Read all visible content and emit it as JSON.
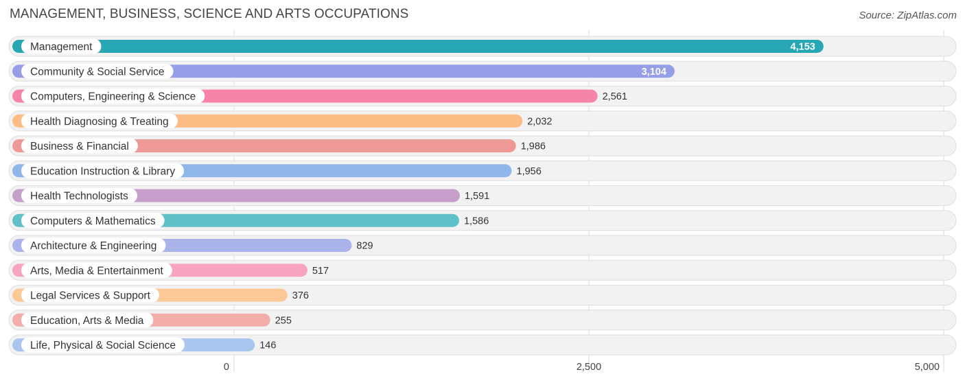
{
  "header": {
    "title": "MANAGEMENT, BUSINESS, SCIENCE AND ARTS OCCUPATIONS",
    "source": "Source: ZipAtlas.com"
  },
  "chart_data": {
    "type": "bar",
    "orientation": "horizontal",
    "title": "MANAGEMENT, BUSINESS, SCIENCE AND ARTS OCCUPATIONS",
    "xlim": [
      0,
      5000
    ],
    "ticks": [
      {
        "value": 0,
        "label": "0"
      },
      {
        "value": 2500,
        "label": "2,500"
      },
      {
        "value": 5000,
        "label": "5,000"
      }
    ],
    "grid": true,
    "categories": [
      "Management",
      "Community & Social Service",
      "Computers, Engineering & Science",
      "Health Diagnosing & Treating",
      "Business & Financial",
      "Education Instruction & Library",
      "Health Technologists",
      "Computers & Mathematics",
      "Architecture & Engineering",
      "Arts, Media & Entertainment",
      "Legal Services & Support",
      "Education, Arts & Media",
      "Life, Physical & Social Science"
    ],
    "values": [
      4153,
      3104,
      2561,
      2032,
      1986,
      1956,
      1591,
      1586,
      829,
      517,
      376,
      255,
      146
    ],
    "value_labels": [
      "4,153",
      "3,104",
      "2,561",
      "2,032",
      "1,986",
      "1,956",
      "1,591",
      "1,586",
      "829",
      "517",
      "376",
      "255",
      "146"
    ],
    "colors": [
      "#27a6b4",
      "#959ee6",
      "#f684a6",
      "#fbbd83",
      "#ee9995",
      "#8fb6e8",
      "#c59fc9",
      "#5fc0c8",
      "#aab3ea",
      "#f8a3bf",
      "#fcc896",
      "#f3aeac",
      "#a9c6ee"
    ]
  }
}
